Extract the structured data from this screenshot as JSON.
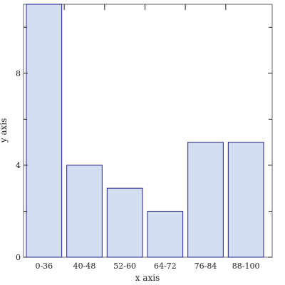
{
  "chart_data": {
    "type": "bar",
    "title": "",
    "xlabel": "x axis",
    "ylabel": "y axis",
    "categories": [
      "0-36",
      "40-48",
      "52-60",
      "64-72",
      "76-84",
      "88-100"
    ],
    "values": [
      11,
      4,
      3,
      2,
      5,
      5
    ],
    "ylim": [
      0,
      11
    ],
    "yticks_labeled": [
      0,
      4,
      8
    ],
    "yticks_minor": [
      2,
      6,
      10
    ],
    "grid": false,
    "legend": "none",
    "colors": {
      "bar_fill": "#d3dff0",
      "bar_stroke": "#1f1f9a",
      "axis": "#666666"
    }
  }
}
